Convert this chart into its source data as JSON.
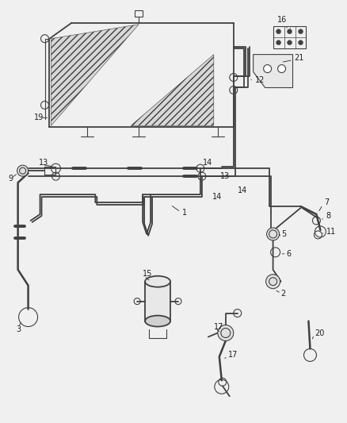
{
  "bg_color": "#f0f0f0",
  "line_color": "#404040",
  "label_color": "#202020",
  "fig_width": 4.38,
  "fig_height": 5.33,
  "dpi": 100
}
